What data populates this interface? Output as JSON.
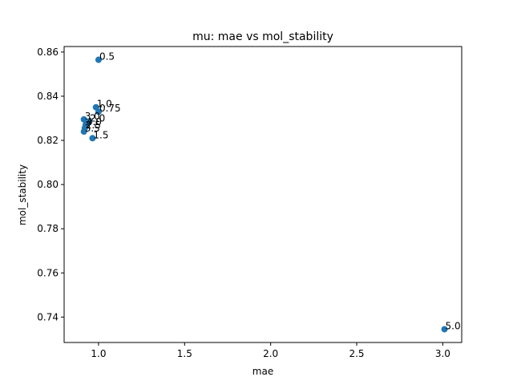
{
  "chart_data": {
    "type": "scatter",
    "title": "mu: mae vs mol_stability",
    "xlabel": "mae",
    "ylabel": "mol_stability",
    "xlim": [
      0.8,
      3.11
    ],
    "ylim": [
      0.7285,
      0.8625
    ],
    "xticks": [
      1.0,
      1.5,
      2.0,
      2.5,
      3.0
    ],
    "xtick_labels": [
      "1.0",
      "1.5",
      "2.0",
      "2.5",
      "3.0"
    ],
    "yticks": [
      0.74,
      0.76,
      0.78,
      0.8,
      0.82,
      0.84,
      0.86
    ],
    "ytick_labels": [
      "0.74",
      "0.76",
      "0.78",
      "0.80",
      "0.82",
      "0.84",
      "0.86"
    ],
    "grid": false,
    "point_color": "#1f77b4",
    "points": [
      {
        "x": 1.0,
        "y": 0.8565,
        "label": "0.5"
      },
      {
        "x": 0.985,
        "y": 0.835,
        "label": "1.0"
      },
      {
        "x": 1.0,
        "y": 0.833,
        "label": "0.75"
      },
      {
        "x": 0.915,
        "y": 0.8295,
        "label": "3.0"
      },
      {
        "x": 0.945,
        "y": 0.8285,
        "label": "2.0"
      },
      {
        "x": 0.925,
        "y": 0.827,
        "label": "4.0"
      },
      {
        "x": 0.92,
        "y": 0.8255,
        "label": "2.5"
      },
      {
        "x": 0.915,
        "y": 0.824,
        "label": "3.5"
      },
      {
        "x": 0.965,
        "y": 0.821,
        "label": "1.5"
      },
      {
        "x": 3.01,
        "y": 0.7345,
        "label": "5.0"
      }
    ]
  }
}
